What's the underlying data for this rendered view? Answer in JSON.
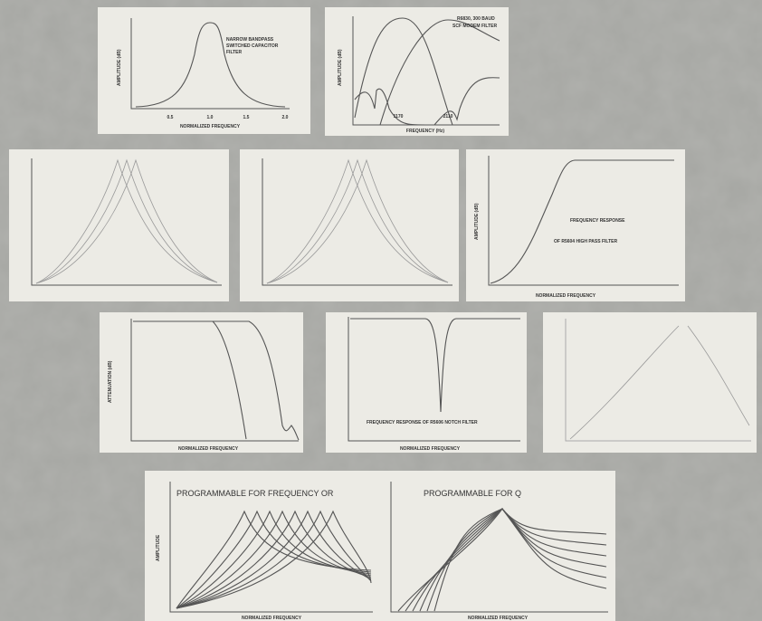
{
  "panels": [
    {
      "title_lines": [
        "NARROW BANDPASS",
        "SWITCHED CAPACITOR",
        "FILTER"
      ],
      "y_label": "AMPLITUDE (dB)",
      "x_label": "NORMALIZED FREQUENCY",
      "ticks": [
        "0.5",
        "1.0",
        "1.5",
        "2.0"
      ]
    },
    {
      "title_lines": [
        "R6830, 300 BAUD",
        "SCF MODEM FILTER"
      ],
      "y_label": "AMPLITUDE (dB)",
      "x_label": "FREQUENCY (Hz)",
      "ticks": [
        "1170",
        "2110"
      ]
    },
    {
      "title_lines": [
        "FREQUENCY RESPONSE",
        "OF R5604 HIGH PASS FILTER"
      ],
      "y_label": "AMPLITUDE (dB)",
      "x_label": "NORMALIZED FREQUENCY"
    },
    {
      "y_label": "ATTENUATION (dB)",
      "x_label": "NORMALIZED FREQUENCY"
    },
    {
      "title_lines": [
        "FREQUENCY RESPONSE OF R5606 NOTCH FILTER"
      ],
      "x_label": "NORMALIZED FREQUENCY"
    },
    {
      "title": "PROGRAMMABLE FOR FREQUENCY OR",
      "y_label": "AMPLITUDE",
      "x_label": "NORMALIZED FREQUENCY"
    },
    {
      "title": "PROGRAMMABLE FOR Q",
      "x_label": "NORMALIZED FREQUENCY"
    }
  ]
}
